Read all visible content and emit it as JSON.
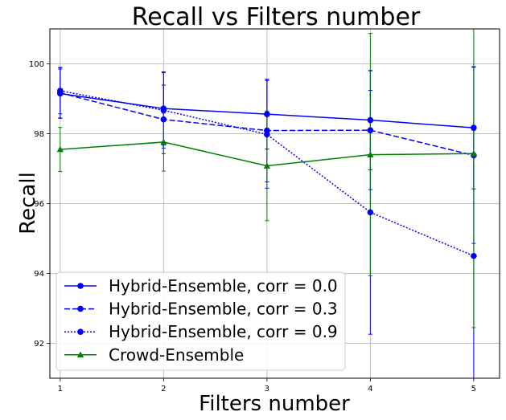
{
  "chart_data": {
    "type": "line",
    "title": "Recall vs Filters number",
    "xlabel": "Filters number",
    "ylabel": "Recall",
    "x": [
      1,
      2,
      3,
      4,
      5
    ],
    "xticks": [
      "1",
      "2",
      "3",
      "4",
      "5"
    ],
    "yticks": [
      "92",
      "94",
      "96",
      "98",
      "100"
    ],
    "xlim": [
      0.9,
      5.25
    ],
    "ylim": [
      91.0,
      101.0
    ],
    "grid": true,
    "legend_position": "lower-left",
    "series": [
      {
        "name": "Hybrid-Ensemble, corr = 0.0",
        "color": "#0000ff",
        "linestyle": "solid",
        "marker": "circle",
        "values": [
          99.15,
          98.72,
          98.56,
          98.39,
          98.17
        ],
        "err": [
          0.7,
          1.05,
          1.0,
          1.42,
          1.75
        ]
      },
      {
        "name": "Hybrid-Ensemble, corr = 0.3",
        "color": "#0000ff",
        "linestyle": "dashed",
        "marker": "circle",
        "values": [
          99.17,
          98.41,
          98.09,
          98.1,
          97.38
        ],
        "err": [
          0.73,
          0.98,
          1.47,
          1.7,
          2.52
        ]
      },
      {
        "name": "Hybrid-Ensemble, corr = 0.9",
        "color": "#0000ff",
        "linestyle": "dotted",
        "marker": "circle",
        "values": [
          99.23,
          98.67,
          97.98,
          95.75,
          94.5
        ],
        "err": [
          0.66,
          1.08,
          1.54,
          3.49,
          3.6
        ]
      },
      {
        "name": "Crowd-Ensemble",
        "color": "#008000",
        "linestyle": "solid",
        "marker": "triangle",
        "values": [
          97.55,
          97.76,
          97.08,
          97.4,
          97.43
        ],
        "err": [
          0.63,
          0.83,
          1.57,
          3.47,
          4.98
        ]
      }
    ]
  }
}
